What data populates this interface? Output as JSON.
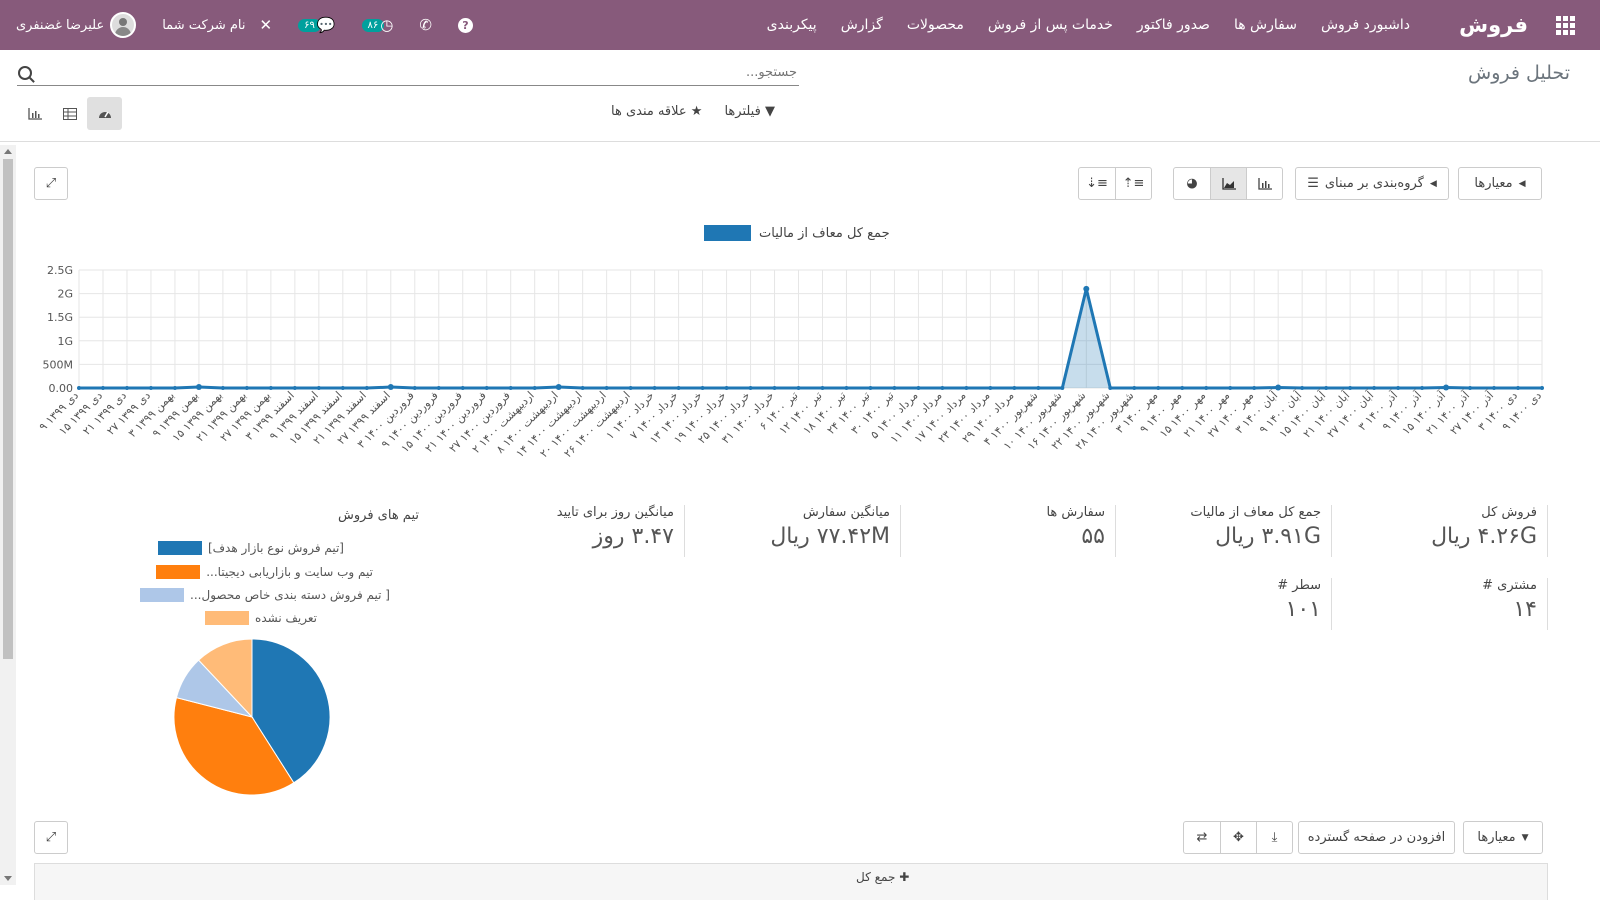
{
  "app": {
    "name": "فروش",
    "menu": [
      "داشبورد فروش",
      "سفارش ها",
      "صدور فاکتور",
      "خدمات پس از فروش",
      "محصولات",
      "گزارش",
      "پیکربندی"
    ]
  },
  "systray": {
    "user_name": "علیرضا غضنفری",
    "company": "نام شرکت شما",
    "messages_count": "۶۹",
    "activities_count": "۸۶",
    "icons": [
      "avatar",
      "wrench-icon",
      "chat-icon",
      "clock-icon",
      "phone-icon",
      "help-icon"
    ]
  },
  "control_panel": {
    "title": "تحلیل فروش",
    "search_placeholder": "جستجو...",
    "filters_label": "فیلترها",
    "favorites_label": "علاقه مندی ها",
    "views": [
      "dashboard",
      "pivot",
      "graph"
    ],
    "active_view": "dashboard"
  },
  "dashboard": {
    "measures_label": "معیارها",
    "groupby_label": "گروه‌بندی بر مبنای",
    "expand_icon": "expand-icon",
    "graph_types": [
      "bar",
      "area",
      "pie"
    ],
    "active_graph": "area",
    "sort_icons": [
      "sort-desc-icon",
      "sort-asc-icon"
    ]
  },
  "chart_data": {
    "type": "area",
    "title": "",
    "xlabel": "",
    "ylabel": "",
    "ylim": [
      0,
      2500000000
    ],
    "yticks": [
      "0.00",
      "500M",
      "1G",
      "1.5G",
      "2G",
      "2.5G"
    ],
    "legend": [
      "جمع کل معاف از مالیات"
    ],
    "color": "#1f77b4",
    "categories": [
      "۹ دی ۱۳۹۹",
      "۱۵ دی ۱۳۹۹",
      "۲۱ دی ۱۳۹۹",
      "۲۷ دی ۱۳۹۹",
      "۳ بهمن ۱۳۹۹",
      "۹ بهمن ۱۳۹۹",
      "۱۵ بهمن ۱۳۹۹",
      "۲۱ بهمن ۱۳۹۹",
      "۲۷ بهمن ۱۳۹۹",
      "۳ اسفند ۱۳۹۹",
      "۹ اسفند ۱۳۹۹",
      "۱۵ اسفند ۱۳۹۹",
      "۲۱ اسفند ۱۳۹۹",
      "۲۷ اسفند ۱۳۹۹",
      "۳ فروردین ۱۴۰۰",
      "۹ فروردین ۱۴۰۰",
      "۱۵ فروردین ۱۴۰۰",
      "۲۱ فروردین ۱۴۰۰",
      "۲۷ فروردین ۱۴۰۰",
      "۲ اردیبهشت ۱۴۰۰",
      "۸ اردیبهشت ۱۴۰۰",
      "۱۴ اردیبهشت ۱۴۰۰",
      "۲۰ اردیبهشت ۱۴۰۰",
      "۲۶ اردیبهشت ۱۴۰۰",
      "۱ خرداد ۱۴۰۰",
      "۷ خرداد ۱۴۰۰",
      "۱۳ خرداد ۱۴۰۰",
      "۱۹ خرداد ۱۴۰۰",
      "۲۵ خرداد ۱۴۰۰",
      "۳۱ خرداد ۱۴۰۰",
      "۶ تیر ۱۴۰۰",
      "۱۲ تیر ۱۴۰۰",
      "۱۸ تیر ۱۴۰۰",
      "۲۴ تیر ۱۴۰۰",
      "۳۰ تیر ۱۴۰۰",
      "۵ مرداد ۱۴۰۰",
      "۱۱ مرداد ۱۴۰۰",
      "۱۷ مرداد ۱۴۰۰",
      "۲۳ مرداد ۱۴۰۰",
      "۲۹ مرداد ۱۴۰۰",
      "۴ شهریور ۱۴۰۰",
      "۱۰ شهریور ۱۴۰۰",
      "۱۶ شهریور ۱۴۰۰",
      "۲۲ شهریور ۱۴۰۰",
      "۲۸ شهریور ۱۴۰۰",
      "۳ مهر ۱۴۰۰",
      "۹ مهر ۱۴۰۰",
      "۱۵ مهر ۱۴۰۰",
      "۲۱ مهر ۱۴۰۰",
      "۲۷ مهر ۱۴۰۰",
      "۳ آبان ۱۴۰۰",
      "۹ آبان ۱۴۰۰",
      "۱۵ آبان ۱۴۰۰",
      "۲۱ آبان ۱۴۰۰",
      "۲۷ آبان ۱۴۰۰",
      "۳ آذر ۱۴۰۰",
      "۹ آذر ۱۴۰۰",
      "۱۵ آذر ۱۴۰۰",
      "۲۱ آذر ۱۴۰۰",
      "۲۷ آذر ۱۴۰۰",
      "۳ دی ۱۴۰۰",
      "۹ دی ۱۴۰۰"
    ],
    "values": [
      0,
      0,
      0,
      0,
      0,
      20000000,
      0,
      0,
      0,
      0,
      0,
      0,
      0,
      20000000,
      0,
      0,
      0,
      0,
      0,
      0,
      20000000,
      0,
      0,
      0,
      0,
      0,
      0,
      0,
      0,
      0,
      0,
      0,
      0,
      0,
      0,
      0,
      0,
      0,
      0,
      0,
      0,
      0,
      2100000000,
      0,
      0,
      0,
      0,
      0,
      0,
      0,
      10000000,
      0,
      0,
      0,
      0,
      0,
      0,
      10000000,
      0,
      0,
      0,
      0
    ]
  },
  "kpis": [
    {
      "label": "فروش کل",
      "value": "۴.۲۶G ریال"
    },
    {
      "label": "جمع کل معاف از مالیات",
      "value": "۳.۹۱G ریال"
    },
    {
      "label": "سفارش ها",
      "value": "۵۵"
    },
    {
      "label": "میانگین سفارش",
      "value": "۷۷.۴۲M ریال"
    },
    {
      "label": "میانگین روز برای تایید",
      "value": "۳.۴۷ روز"
    },
    {
      "label": "# مشتری",
      "value": "۱۴"
    },
    {
      "label": "# سطر",
      "value": "۱۰۱"
    }
  ],
  "pie_chart": {
    "title": "تیم های فروش",
    "type": "pie",
    "legend": [
      {
        "label": "[تیم فروش نوع بازار هدف]",
        "color": "#1f77b4",
        "value": 41
      },
      {
        "label": "تیم وب سایت و بازاریابی دیجیتا...",
        "color": "#ff7f0e",
        "value": 38
      },
      {
        "label": "[ تیم فروش دسته بندی خاص محصول...",
        "color": "#aec7e8",
        "value": 9
      },
      {
        "label": "تعریف نشده",
        "color": "#ffbb78",
        "value": 12
      }
    ]
  },
  "pivot": {
    "measures_label": "معیارها",
    "insert_label": "افزودن در صفحه گسترده",
    "total_label": "جمع کل",
    "icons": [
      "flip-icon",
      "expand-all-icon",
      "download-icon"
    ]
  }
}
